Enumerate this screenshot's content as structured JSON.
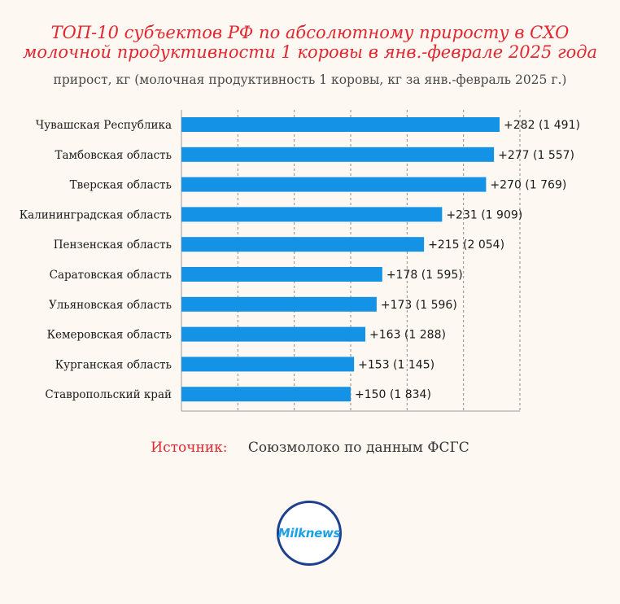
{
  "title_line1": "ТОП-10 субъектов РФ по абсолютному приросту в СХО",
  "title_line2": "молочной продуктивности 1 коровы в янв.-феврале 2025 года",
  "subtitle": "прирост, кг (молочная продуктивность 1 коровы, кг за янв.-февраль 2025 г.)",
  "source_label": "Источник:",
  "source_text": "Союзмолоко по данным ФСГС",
  "logo_text": "Milknews",
  "colors": {
    "bar": "#1492e6",
    "title": "#e3262f",
    "logo_ring": "#1e3f8f"
  },
  "chart_data": {
    "type": "bar",
    "orientation": "horizontal",
    "categories": [
      "Чувашская Республика",
      "Тамбовская область",
      "Тверская область",
      "Калининградская область",
      "Пензенская область",
      "Саратовская область",
      "Ульяновская область",
      "Кемеровская область",
      "Курганская область",
      "Ставропольский край"
    ],
    "values": [
      282,
      277,
      270,
      231,
      215,
      178,
      173,
      163,
      153,
      150
    ],
    "labels": [
      "+282 (1 491)",
      "+277 (1 557)",
      "+270 (1 769)",
      "+231 (1 909)",
      "+215 (2 054)",
      "+178 (1 595)",
      "+173 (1 596)",
      "+163 (1 288)",
      "+153 (1 145)",
      "+150 (1 834)"
    ],
    "xlim": [
      0,
      300
    ],
    "grid": true
  }
}
